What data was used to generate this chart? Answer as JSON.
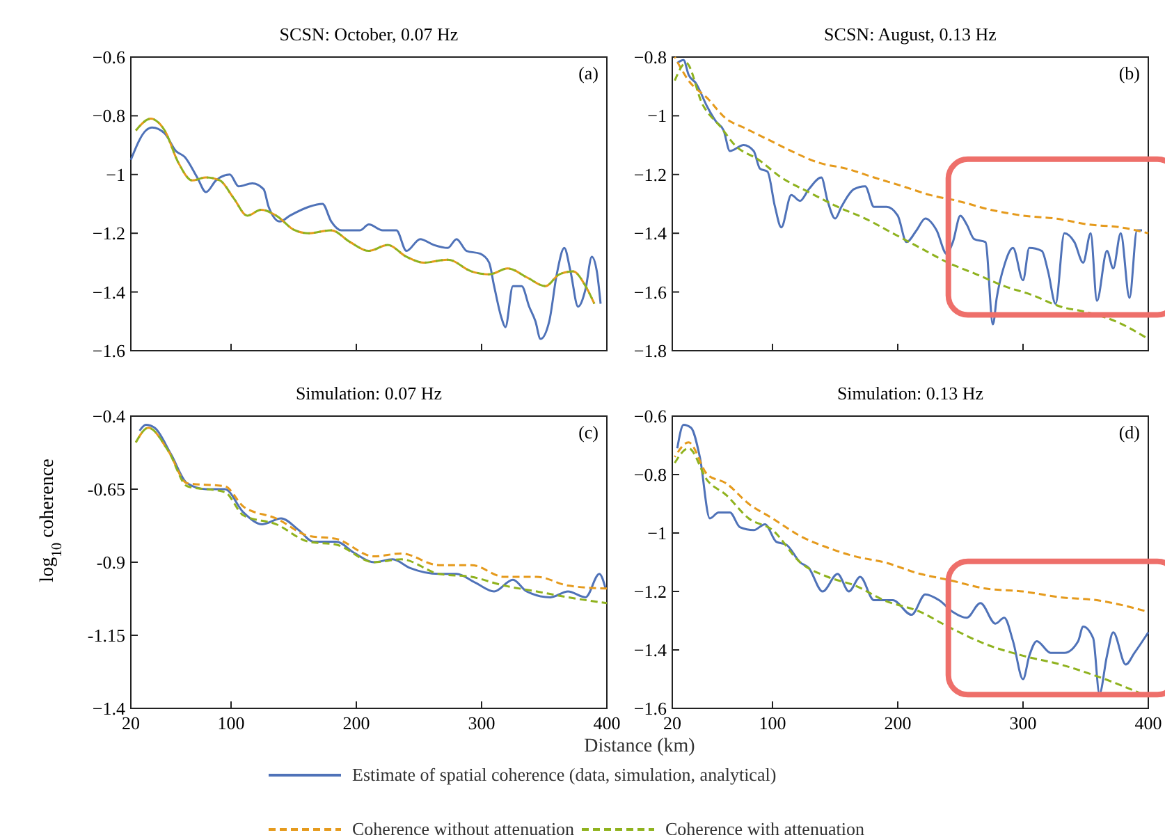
{
  "chart_data": [
    {
      "type": "line",
      "title": "SCSN: October, 0.07 Hz",
      "annotations": [
        "(a)"
      ],
      "xlim": [
        20,
        400
      ],
      "xticks": [
        {
          "value": 100,
          "label": null
        },
        {
          "value": 200,
          "label": null
        },
        {
          "value": 300,
          "label": null
        }
      ],
      "ylim": [
        -1.6,
        -0.6
      ],
      "yticks": [
        {
          "value": -0.6,
          "label": "−0.6"
        },
        {
          "value": -0.8,
          "label": "−0.8"
        },
        {
          "value": -1,
          "label": "−1"
        },
        {
          "value": -1.2,
          "label": "−1.2"
        },
        {
          "value": -1.4,
          "label": "−1.4"
        },
        {
          "value": -1.6,
          "label": "−1.6"
        }
      ],
      "tick_labels": "y",
      "grid": false,
      "legend": false,
      "series": [
        {
          "color": "#4f72b8",
          "line_style": "solid",
          "x": [
            20,
            32,
            37,
            47,
            56,
            63,
            73,
            80,
            88,
            99,
            106,
            117,
            126,
            130,
            139,
            147,
            162,
            173,
            180,
            188,
            203,
            210,
            221,
            232,
            240,
            251,
            262,
            273,
            280,
            288,
            299,
            306,
            310,
            316,
            319,
            325,
            332,
            338,
            343,
            347,
            354,
            360,
            366,
            371,
            377,
            383,
            388,
            392,
            395
          ],
          "values": [
            -0.95,
            -0.85,
            -0.84,
            -0.86,
            -0.92,
            -0.94,
            -1.01,
            -1.06,
            -1.02,
            -1.0,
            -1.04,
            -1.03,
            -1.05,
            -1.11,
            -1.16,
            -1.14,
            -1.11,
            -1.1,
            -1.16,
            -1.19,
            -1.19,
            -1.17,
            -1.19,
            -1.19,
            -1.26,
            -1.22,
            -1.24,
            -1.25,
            -1.22,
            -1.26,
            -1.27,
            -1.3,
            -1.38,
            -1.49,
            -1.52,
            -1.38,
            -1.38,
            -1.45,
            -1.5,
            -1.56,
            -1.5,
            -1.34,
            -1.25,
            -1.33,
            -1.45,
            -1.39,
            -1.28,
            -1.33,
            -1.44
          ]
        },
        {
          "color": "#e59a1c",
          "line_style": "dashed",
          "x": [
            24,
            36,
            47,
            58,
            69,
            80,
            91,
            102,
            113,
            124,
            136,
            151,
            162,
            180,
            195,
            210,
            225,
            240,
            254,
            273,
            292,
            306,
            321,
            336,
            351,
            362,
            373,
            383,
            390
          ],
          "values": [
            -0.85,
            -0.81,
            -0.85,
            -0.96,
            -1.02,
            -1.01,
            -1.02,
            -1.08,
            -1.14,
            -1.12,
            -1.14,
            -1.19,
            -1.2,
            -1.19,
            -1.23,
            -1.26,
            -1.24,
            -1.28,
            -1.3,
            -1.29,
            -1.33,
            -1.34,
            -1.32,
            -1.35,
            -1.38,
            -1.34,
            -1.33,
            -1.38,
            -1.44
          ]
        },
        {
          "color": "#8fb21e",
          "line_style": "dashed",
          "x": [
            24,
            36,
            47,
            58,
            69,
            80,
            91,
            102,
            113,
            124,
            136,
            151,
            162,
            180,
            195,
            210,
            225,
            240,
            254,
            273,
            292,
            306,
            321,
            336,
            351,
            362,
            373,
            383,
            390
          ],
          "values": [
            -0.85,
            -0.81,
            -0.85,
            -0.96,
            -1.02,
            -1.01,
            -1.02,
            -1.08,
            -1.14,
            -1.12,
            -1.14,
            -1.19,
            -1.2,
            -1.19,
            -1.23,
            -1.26,
            -1.24,
            -1.28,
            -1.3,
            -1.29,
            -1.33,
            -1.34,
            -1.32,
            -1.35,
            -1.38,
            -1.34,
            -1.33,
            -1.38,
            -1.44
          ]
        }
      ]
    },
    {
      "type": "line",
      "title": "SCSN: August, 0.13 Hz",
      "annotations": [
        "(b)"
      ],
      "xlim": [
        20,
        400
      ],
      "xticks": [
        {
          "value": 100,
          "label": null
        },
        {
          "value": 200,
          "label": null
        },
        {
          "value": 300,
          "label": null
        }
      ],
      "ylim": [
        -1.8,
        -0.8
      ],
      "yticks": [
        {
          "value": -0.8,
          "label": "−0.8"
        },
        {
          "value": -1,
          "label": "−1"
        },
        {
          "value": -1.2,
          "label": "−1.2"
        },
        {
          "value": -1.4,
          "label": "−1.4"
        },
        {
          "value": -1.6,
          "label": "−1.6"
        },
        {
          "value": -1.8,
          "label": "−1.8"
        }
      ],
      "tick_labels": "y",
      "grid": false,
      "legend": false,
      "series": [
        {
          "color": "#4f72b8",
          "line_style": "solid",
          "x": [
            24,
            29,
            33,
            39,
            48,
            55,
            61,
            66,
            77,
            85,
            90,
            96,
            102,
            107,
            115,
            122,
            129,
            139,
            144,
            150,
            155,
            165,
            174,
            181,
            191,
            200,
            207,
            215,
            222,
            231,
            239,
            244,
            250,
            255,
            261,
            270,
            276,
            279,
            285,
            292,
            300,
            305,
            315,
            320,
            326,
            333,
            341,
            348,
            354,
            359,
            367,
            372,
            378,
            385,
            391,
            395
          ],
          "values": [
            -0.82,
            -0.81,
            -0.86,
            -0.89,
            -0.97,
            -1.02,
            -1.05,
            -1.12,
            -1.1,
            -1.12,
            -1.18,
            -1.19,
            -1.31,
            -1.38,
            -1.27,
            -1.29,
            -1.25,
            -1.21,
            -1.29,
            -1.35,
            -1.31,
            -1.25,
            -1.24,
            -1.31,
            -1.31,
            -1.34,
            -1.43,
            -1.39,
            -1.35,
            -1.39,
            -1.47,
            -1.43,
            -1.34,
            -1.37,
            -1.42,
            -1.43,
            -1.71,
            -1.62,
            -1.51,
            -1.45,
            -1.56,
            -1.45,
            -1.46,
            -1.53,
            -1.64,
            -1.4,
            -1.43,
            -1.5,
            -1.4,
            -1.63,
            -1.46,
            -1.52,
            -1.4,
            -1.62,
            -1.39,
            -1.39
          ]
        },
        {
          "color": "#e59a1c",
          "line_style": "dashed",
          "x": [
            22,
            33,
            48,
            63,
            77,
            96,
            115,
            137,
            159,
            181,
            204,
            226,
            248,
            274,
            300,
            326,
            352,
            378,
            400
          ],
          "values": [
            -0.8,
            -0.88,
            -0.94,
            -1.01,
            -1.04,
            -1.08,
            -1.12,
            -1.16,
            -1.18,
            -1.21,
            -1.24,
            -1.27,
            -1.29,
            -1.32,
            -1.34,
            -1.35,
            -1.37,
            -1.38,
            -1.4
          ]
        },
        {
          "color": "#8fb21e",
          "line_style": "dashed",
          "x": [
            22,
            31,
            44,
            59,
            70,
            89,
            107,
            129,
            152,
            174,
            196,
            218,
            240,
            263,
            285,
            307,
            330,
            352,
            374,
            400
          ],
          "values": [
            -0.88,
            -0.82,
            -0.96,
            -1.04,
            -1.1,
            -1.15,
            -1.21,
            -1.26,
            -1.31,
            -1.35,
            -1.4,
            -1.45,
            -1.5,
            -1.54,
            -1.58,
            -1.61,
            -1.65,
            -1.67,
            -1.7,
            -1.76
          ]
        }
      ]
    },
    {
      "type": "line",
      "title": "Simulation: 0.07 Hz",
      "ylabel": "log$_{10}$ coherence",
      "annotations": [
        "(c)"
      ],
      "xlim": [
        20,
        400
      ],
      "xticks": [
        20,
        100,
        200,
        300,
        400
      ],
      "ylim": [
        -1.4,
        -0.4
      ],
      "yticks": [
        {
          "value": -0.4,
          "label": "−0.4"
        },
        {
          "value": -0.65,
          "label": "-0.65"
        },
        {
          "value": -0.9,
          "label": "-0.9"
        },
        {
          "value": -1.15,
          "label": "-1.15"
        },
        {
          "value": -1.4,
          "label": "−1.4"
        }
      ],
      "grid": false,
      "legend": false,
      "series": [
        {
          "color": "#4f72b8",
          "line_style": "solid",
          "x": [
            27,
            32,
            39,
            52,
            65,
            80,
            95,
            110,
            125,
            140,
            154,
            166,
            184,
            199,
            214,
            229,
            243,
            266,
            280,
            295,
            310,
            325,
            336,
            355,
            369,
            383,
            394,
            399
          ],
          "values": [
            -0.45,
            -0.43,
            -0.44,
            -0.53,
            -0.63,
            -0.65,
            -0.65,
            -0.73,
            -0.77,
            -0.75,
            -0.79,
            -0.83,
            -0.83,
            -0.87,
            -0.9,
            -0.89,
            -0.92,
            -0.94,
            -0.94,
            -0.97,
            -1.0,
            -0.96,
            -1.0,
            -1.02,
            -1.0,
            -1.02,
            -0.94,
            -0.99
          ]
        },
        {
          "color": "#e59a1c",
          "line_style": "dashed",
          "x": [
            24,
            34,
            50,
            65,
            95,
            110,
            136,
            162,
            184,
            214,
            236,
            266,
            292,
            318,
            344,
            369,
            400
          ],
          "values": [
            -0.49,
            -0.44,
            -0.52,
            -0.63,
            -0.64,
            -0.71,
            -0.75,
            -0.81,
            -0.82,
            -0.88,
            -0.87,
            -0.91,
            -0.91,
            -0.95,
            -0.95,
            -0.98,
            -0.99
          ]
        },
        {
          "color": "#8fb21e",
          "line_style": "dashed",
          "x": [
            24,
            34,
            50,
            65,
            95,
            110,
            136,
            162,
            184,
            214,
            236,
            266,
            292,
            318,
            344,
            369,
            400
          ],
          "values": [
            -0.49,
            -0.44,
            -0.52,
            -0.64,
            -0.66,
            -0.74,
            -0.77,
            -0.83,
            -0.84,
            -0.9,
            -0.89,
            -0.94,
            -0.95,
            -0.98,
            -1.0,
            -1.02,
            -1.04
          ]
        }
      ]
    },
    {
      "type": "line",
      "title": "Simulation: 0.13 Hz",
      "xlabel": "Distance (km)",
      "annotations": [
        "(d)"
      ],
      "xlim": [
        20,
        400
      ],
      "xticks": [
        20,
        100,
        200,
        300,
        400
      ],
      "ylim": [
        -1.6,
        -0.6
      ],
      "yticks": [
        {
          "value": -0.6,
          "label": "−0.6"
        },
        {
          "value": -0.8,
          "label": "−0.8"
        },
        {
          "value": -1,
          "label": "−1"
        },
        {
          "value": -1.2,
          "label": "−1.2"
        },
        {
          "value": -1.4,
          "label": "−1.4"
        },
        {
          "value": -1.6,
          "label": "−1.6"
        }
      ],
      "grid": false,
      "legend": "bottom",
      "series": [
        {
          "name": "Estimate of spatial coherence (data, simulation, analytical)",
          "color": "#4f72b8",
          "line_style": "solid",
          "x": [
            24,
            29,
            35,
            42,
            50,
            57,
            66,
            74,
            85,
            94,
            103,
            111,
            122,
            129,
            140,
            152,
            161,
            170,
            181,
            196,
            211,
            222,
            233,
            244,
            255,
            266,
            278,
            285,
            292,
            300,
            305,
            311,
            322,
            333,
            344,
            348,
            356,
            361,
            367,
            372,
            382,
            389,
            400
          ],
          "values": [
            -0.71,
            -0.63,
            -0.64,
            -0.74,
            -0.95,
            -0.93,
            -0.93,
            -0.98,
            -0.99,
            -0.97,
            -1.03,
            -1.04,
            -1.1,
            -1.12,
            -1.2,
            -1.14,
            -1.2,
            -1.15,
            -1.23,
            -1.23,
            -1.28,
            -1.21,
            -1.23,
            -1.27,
            -1.29,
            -1.24,
            -1.31,
            -1.29,
            -1.37,
            -1.5,
            -1.42,
            -1.37,
            -1.41,
            -1.41,
            -1.37,
            -1.32,
            -1.36,
            -1.55,
            -1.42,
            -1.34,
            -1.45,
            -1.41,
            -1.34
          ]
        },
        {
          "name": "Coherence without attenuation",
          "color": "#e59a1c",
          "line_style": "dashed",
          "x": [
            22,
            33,
            48,
            63,
            81,
            100,
            122,
            144,
            166,
            189,
            218,
            240,
            270,
            300,
            330,
            359,
            400
          ],
          "values": [
            -0.74,
            -0.69,
            -0.8,
            -0.83,
            -0.9,
            -0.95,
            -1.01,
            -1.05,
            -1.08,
            -1.1,
            -1.14,
            -1.16,
            -1.19,
            -1.2,
            -1.22,
            -1.23,
            -1.27
          ]
        },
        {
          "name": "Coherence with attenuation",
          "color": "#8fb21e",
          "line_style": "dashed",
          "x": [
            22,
            33,
            48,
            63,
            81,
            100,
            122,
            144,
            166,
            189,
            218,
            240,
            270,
            300,
            330,
            359,
            400
          ],
          "values": [
            -0.76,
            -0.71,
            -0.82,
            -0.87,
            -0.95,
            -0.99,
            -1.1,
            -1.15,
            -1.18,
            -1.23,
            -1.27,
            -1.32,
            -1.38,
            -1.42,
            -1.45,
            -1.49,
            -1.56
          ]
        }
      ]
    }
  ]
}
